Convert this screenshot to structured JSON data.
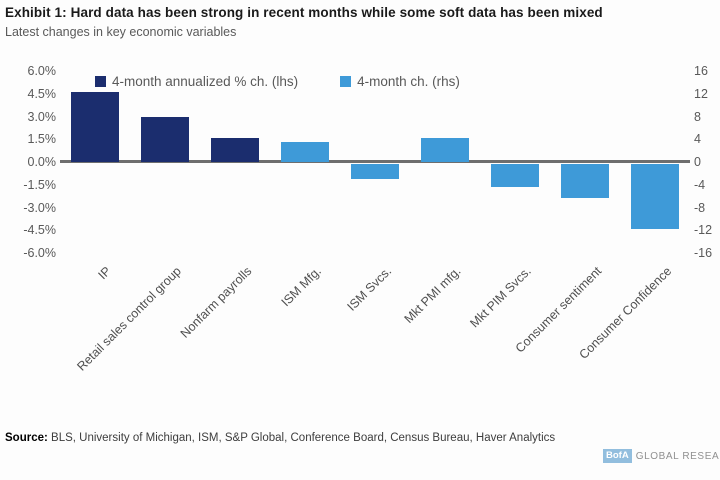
{
  "header": {
    "title": "Exhibit 1: Hard data has been strong in recent months while some soft data has been mixed",
    "subtitle": "Latest changes in key economic variables"
  },
  "chart_data": {
    "type": "bar",
    "title": "Exhibit 1: Hard data has been strong in recent months while some soft data has been mixed",
    "subtitle": "Latest changes in key economic variables",
    "grid": false,
    "legend_position": "top",
    "categories": [
      "IP",
      "Retail sales control group",
      "Nonfarm payrolls",
      "ISM Mfg.",
      "ISM Svcs.",
      "Mkt PMI mfg.",
      "Mkt PIM Svcs.",
      "Consumer sentiment",
      "Consumer Confidence"
    ],
    "series": [
      {
        "name": "4-month annualized % ch. (lhs)",
        "axis": "lhs",
        "color": "#1b2d6e",
        "values": [
          4.6,
          3.0,
          1.6,
          null,
          null,
          null,
          null,
          null,
          null
        ]
      },
      {
        "name": "4-month ch. (rhs)",
        "axis": "rhs",
        "color": "#3e9ad8",
        "values": [
          null,
          null,
          null,
          3.5,
          -2.6,
          4.2,
          -4.1,
          -5.9,
          -11.5
        ]
      }
    ],
    "left_axis": {
      "ticks": [
        "6.0%",
        "4.5%",
        "3.0%",
        "1.5%",
        "0.0%",
        "-1.5%",
        "-3.0%",
        "-4.5%",
        "-6.0%"
      ],
      "min": -6,
      "max": 6
    },
    "right_axis": {
      "ticks": [
        "16",
        "12",
        "8",
        "4",
        "0",
        "-4",
        "-8",
        "-12",
        "-16"
      ],
      "min": -16,
      "max": 16
    }
  },
  "footer": {
    "source_label": "Source:",
    "source_text": "BLS, University of Michigan, ISM, S&P Global, Conference Board, Census Bureau, Haver Analytics",
    "brand_logo": "BofA",
    "brand_text": "GLOBAL RESEARCH"
  },
  "colors": {
    "navy": "#1b2d6e",
    "light_blue": "#3e9ad8",
    "zero_line": "#6e6e6e",
    "brand_logo_bg": "#92bede"
  }
}
